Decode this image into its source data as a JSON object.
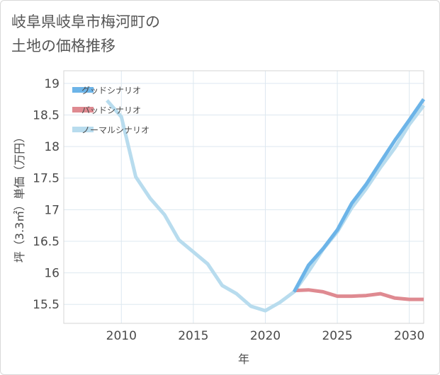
{
  "title": "岐阜県岐阜市梅河町の\n土地の価格推移",
  "chart_data": {
    "type": "line",
    "xlabel": "年",
    "ylabel": "坪（3.3㎡）単価（万円）",
    "xlim": [
      2006,
      2031
    ],
    "ylim": [
      15.2,
      19.2
    ],
    "x_ticks": [
      "2010",
      "2015",
      "2020",
      "2025",
      "2030"
    ],
    "y_ticks": [
      "15.5",
      "16",
      "16.5",
      "17",
      "17.5",
      "18",
      "18.5",
      "19"
    ],
    "grid": true,
    "legend_position": "top-left",
    "series": [
      {
        "name": "グッドシナリオ",
        "color": "#6cb4e8",
        "x": [
          2022,
          2023,
          2024,
          2025,
          2026,
          2027,
          2028,
          2029,
          2030,
          2031
        ],
        "y": [
          15.7,
          16.12,
          16.38,
          16.68,
          17.1,
          17.4,
          17.75,
          18.1,
          18.42,
          18.75
        ]
      },
      {
        "name": "バッドシナリオ",
        "color": "#df8a91",
        "x": [
          2022,
          2023,
          2024,
          2025,
          2026,
          2027,
          2028,
          2029,
          2030,
          2031
        ],
        "y": [
          15.72,
          15.73,
          15.7,
          15.63,
          15.63,
          15.64,
          15.67,
          15.6,
          15.58,
          15.58
        ]
      },
      {
        "name": "ノーマルシナリオ",
        "color": "#b8dcee",
        "x": [
          2009,
          2010,
          2011,
          2012,
          2013,
          2014,
          2015,
          2016,
          2017,
          2018,
          2019,
          2020,
          2021,
          2022,
          2023,
          2024,
          2025,
          2026,
          2027,
          2028,
          2029,
          2030,
          2031
        ],
        "y": [
          18.73,
          18.47,
          17.52,
          17.18,
          16.92,
          16.52,
          16.33,
          16.14,
          15.8,
          15.67,
          15.47,
          15.4,
          15.53,
          15.7,
          16.02,
          16.37,
          16.65,
          17.03,
          17.33,
          17.67,
          17.98,
          18.35,
          18.65
        ]
      }
    ]
  }
}
